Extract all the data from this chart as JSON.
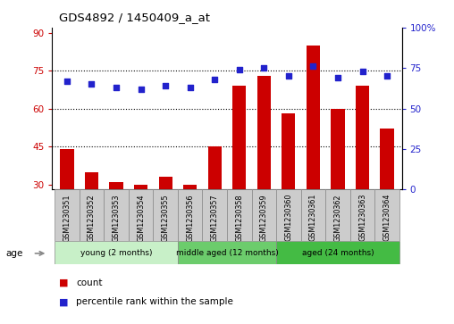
{
  "title": "GDS4892 / 1450409_a_at",
  "samples": [
    "GSM1230351",
    "GSM1230352",
    "GSM1230353",
    "GSM1230354",
    "GSM1230355",
    "GSM1230356",
    "GSM1230357",
    "GSM1230358",
    "GSM1230359",
    "GSM1230360",
    "GSM1230361",
    "GSM1230362",
    "GSM1230363",
    "GSM1230364"
  ],
  "counts": [
    44,
    35,
    31,
    30,
    33,
    30,
    45,
    69,
    73,
    58,
    85,
    60,
    69,
    52
  ],
  "percentiles": [
    67,
    65,
    63,
    62,
    64,
    63,
    68,
    74,
    75,
    70,
    76,
    69,
    73,
    70
  ],
  "ylim_left": [
    28,
    92
  ],
  "ylim_right": [
    0,
    100
  ],
  "yticks_left": [
    30,
    45,
    60,
    75,
    90
  ],
  "yticks_right": [
    0,
    25,
    50,
    75,
    100
  ],
  "ytick_labels_right": [
    "0",
    "25",
    "50",
    "75",
    "100%"
  ],
  "hlines": [
    45,
    60,
    75
  ],
  "bar_color": "#cc0000",
  "dot_color": "#2222cc",
  "bar_width": 0.55,
  "groups": [
    {
      "label": "young (2 months)",
      "start": 0,
      "end": 5,
      "color": "#c8f0c8"
    },
    {
      "label": "middle aged (12 months)",
      "start": 5,
      "end": 9,
      "color": "#6ccc6c"
    },
    {
      "label": "aged (24 months)",
      "start": 9,
      "end": 14,
      "color": "#44bb44"
    }
  ],
  "age_label": "age",
  "legend_count_label": "count",
  "legend_percentile_label": "percentile rank within the sample",
  "axis_left_color": "#cc0000",
  "axis_right_color": "#2222cc",
  "spine_color": "#000000",
  "sample_box_color": "#cccccc",
  "sample_box_edge": "#888888"
}
